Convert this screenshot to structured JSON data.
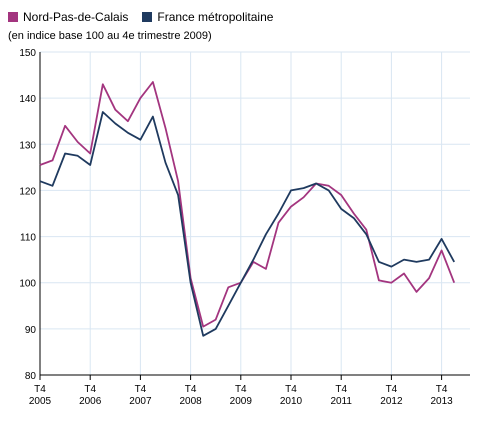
{
  "chart_data": {
    "type": "line",
    "subtitle": "(en indice base 100 au 4e trimestre 2009)",
    "ylim": [
      80,
      150
    ],
    "yticks": [
      80,
      90,
      100,
      110,
      120,
      130,
      140,
      150
    ],
    "grid": true,
    "legend_placement": "top-left",
    "x_tick_labels": [
      {
        "q": "T4",
        "year": "2005"
      },
      {
        "q": "T4",
        "year": "2006"
      },
      {
        "q": "T4",
        "year": "2007"
      },
      {
        "q": "T4",
        "year": "2008"
      },
      {
        "q": "T4",
        "year": "2009"
      },
      {
        "q": "T4",
        "year": "2010"
      },
      {
        "q": "T4",
        "year": "2011"
      },
      {
        "q": "T4",
        "year": "2012"
      },
      {
        "q": "T4",
        "year": "2013"
      }
    ],
    "x": [
      "2005T4",
      "2006T1",
      "2006T2",
      "2006T3",
      "2006T4",
      "2007T1",
      "2007T2",
      "2007T3",
      "2007T4",
      "2008T1",
      "2008T2",
      "2008T3",
      "2008T4",
      "2009T1",
      "2009T2",
      "2009T3",
      "2009T4",
      "2010T1",
      "2010T2",
      "2010T3",
      "2010T4",
      "2011T1",
      "2011T2",
      "2011T3",
      "2011T4",
      "2012T1",
      "2012T2",
      "2012T3",
      "2012T4",
      "2013T1",
      "2013T2",
      "2013T3",
      "2013T4",
      "2014T1"
    ],
    "series": [
      {
        "name": "Nord-Pas-de-Calais",
        "color": "#a3357f",
        "values": [
          125.5,
          126.5,
          134,
          130.5,
          128,
          143,
          137.5,
          135,
          140,
          143.5,
          133.5,
          122,
          101,
          90.5,
          92,
          99,
          100,
          104.5,
          103,
          113,
          116.5,
          118.5,
          121.5,
          121,
          119,
          115,
          111.5,
          100.5,
          100,
          102,
          98,
          101,
          107,
          100
        ]
      },
      {
        "name": "France métropolitaine",
        "color": "#1f3a5f",
        "values": [
          122,
          121,
          128,
          127.5,
          125.5,
          137,
          134.5,
          132.5,
          131,
          136,
          126,
          119,
          100,
          88.5,
          90,
          95,
          100,
          105,
          110.5,
          115,
          120,
          120.5,
          121.5,
          120,
          116,
          114,
          110.5,
          104.5,
          103.5,
          105,
          104.5,
          105,
          109.5,
          104.5
        ]
      }
    ]
  }
}
